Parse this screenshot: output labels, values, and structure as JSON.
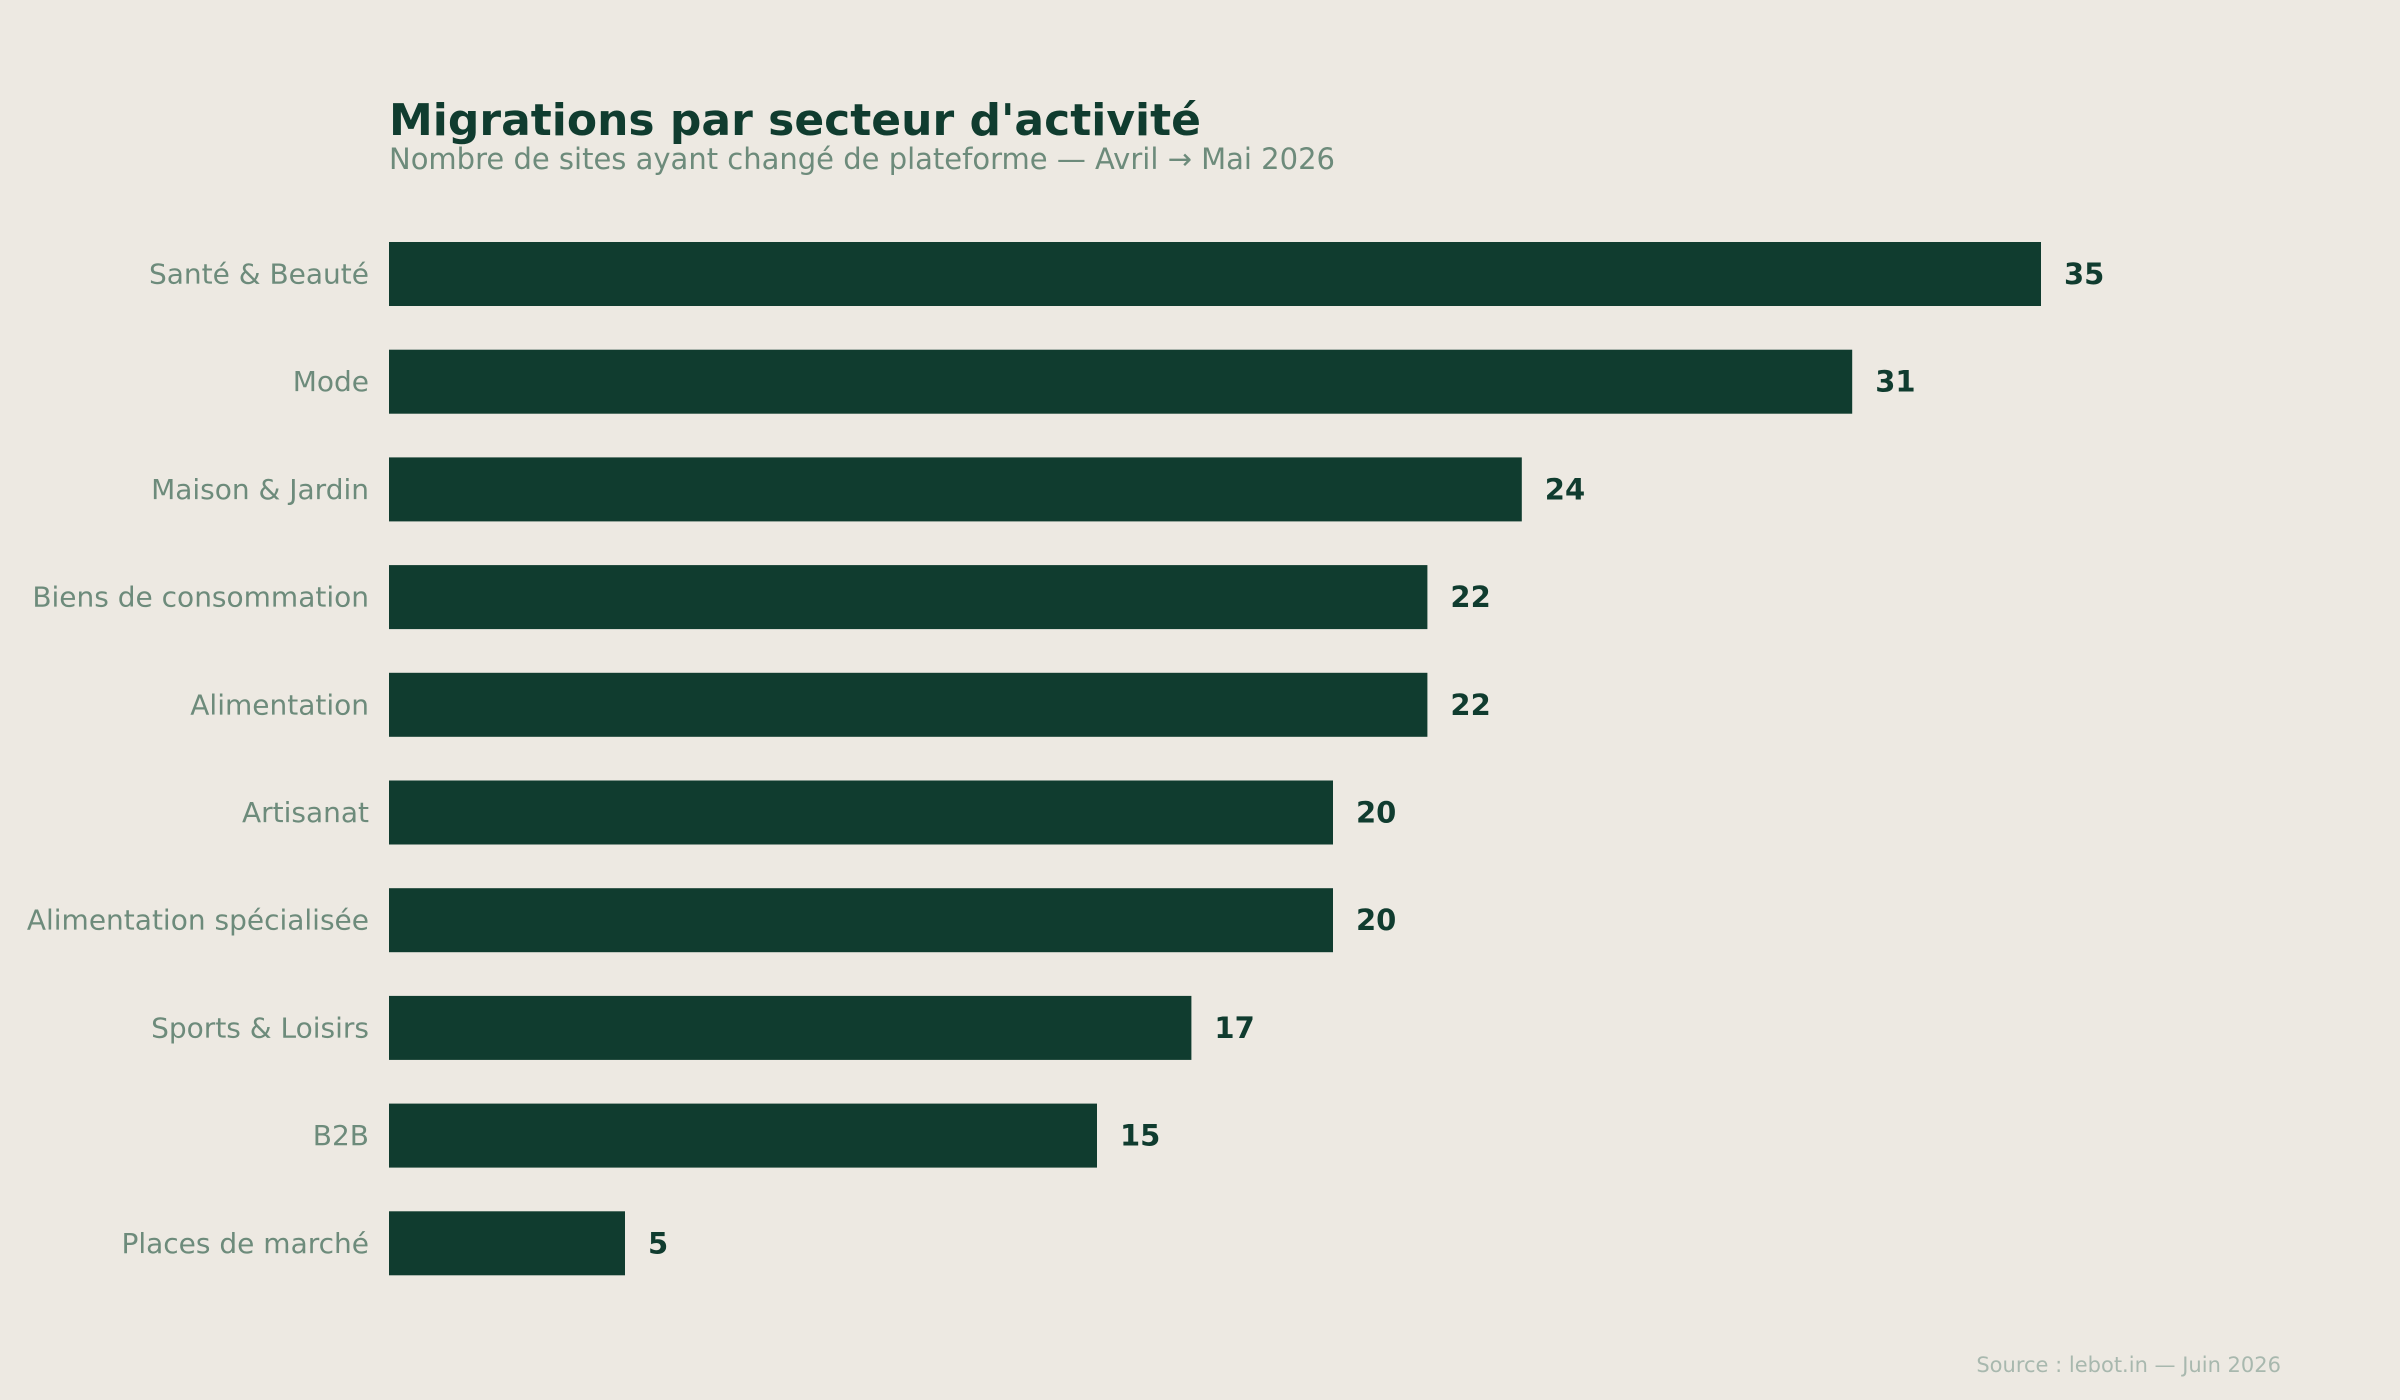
{
  "chart_data": {
    "type": "bar",
    "orientation": "horizontal",
    "title": "Migrations par secteur d'activité",
    "subtitle": "Nombre de sites ayant changé de plateforme — Avril → Mai 2026",
    "source": "Source : lebot.in — Juin 2026",
    "categories": [
      "Santé & Beauté",
      "Mode",
      "Maison & Jardin",
      "Biens de consommation",
      "Alimentation",
      "Artisanat",
      "Alimentation spécialisée",
      "Sports & Loisirs",
      "B2B",
      "Places de marché"
    ],
    "values": [
      35,
      31,
      24,
      22,
      22,
      20,
      20,
      17,
      15,
      5
    ],
    "xlim": [
      0,
      35
    ],
    "grid": false,
    "legend": "none",
    "data_labels": true,
    "bar_color": "#103c2f",
    "label_color": "#6d8b7b",
    "value_label_color": "#103c2f",
    "background": "#ede9e2"
  }
}
